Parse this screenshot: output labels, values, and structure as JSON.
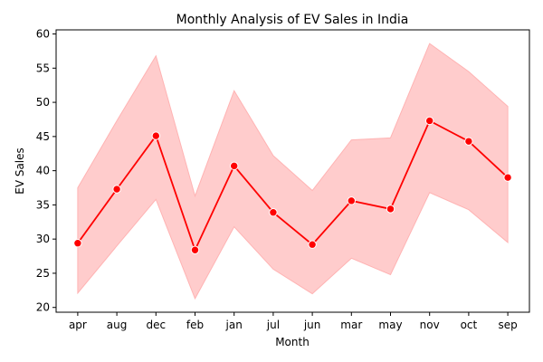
{
  "chart_data": {
    "type": "line",
    "title": "Monthly Analysis of EV Sales in India",
    "xlabel": "Month",
    "ylabel": "EV Sales",
    "categories": [
      "apr",
      "aug",
      "dec",
      "feb",
      "jan",
      "jul",
      "jun",
      "mar",
      "may",
      "nov",
      "oct",
      "sep"
    ],
    "series": [
      {
        "values": [
          29.4,
          37.3,
          45.1,
          28.4,
          40.7,
          33.9,
          29.2,
          35.6,
          34.4,
          47.3,
          44.3,
          39.0
        ],
        "ci_lower": [
          22.1,
          29.0,
          35.8,
          21.3,
          31.8,
          25.6,
          22.0,
          27.2,
          24.8,
          36.8,
          34.3,
          29.5
        ],
        "ci_upper": [
          37.5,
          47.3,
          56.8,
          36.3,
          51.7,
          42.2,
          37.1,
          44.5,
          44.8,
          58.6,
          54.5,
          49.4
        ]
      }
    ],
    "ylim": [
      19.3,
      60.6
    ],
    "yticks": [
      20,
      25,
      30,
      35,
      40,
      45,
      50,
      55,
      60
    ],
    "grid": false,
    "legend": "none",
    "colors": {
      "line": "#ff0000",
      "band": "#ffcccc",
      "band_edge": "#ffb3b3",
      "marker_edge": "#ffffff"
    }
  }
}
